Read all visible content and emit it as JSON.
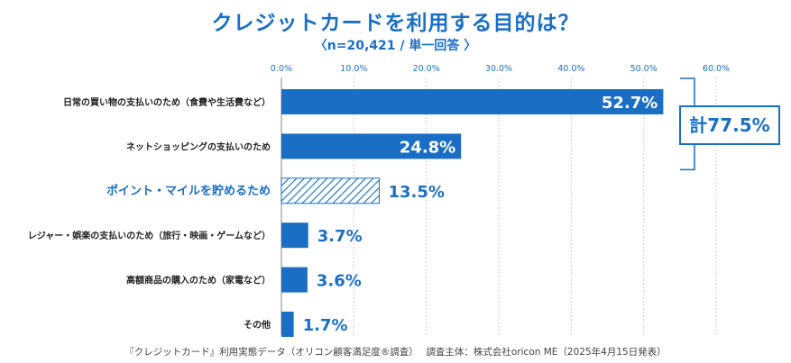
{
  "colors": {
    "accent": "#1a6fc4",
    "bar": "#1a6fc4",
    "grid": "#cfcfcf",
    "label": "#222222"
  },
  "chart_data": {
    "type": "bar",
    "orientation": "horizontal",
    "title": "クレジットカードを利用する目的は？",
    "subtitle": "〈n=20,421 / 単一回答 〉",
    "xlim": [
      0,
      60
    ],
    "ticks": [
      "0.0%",
      "10.0%",
      "20.0%",
      "30.0%",
      "40.0%",
      "50.0%",
      "60.0%"
    ],
    "tick_values": [
      0,
      10,
      20,
      30,
      40,
      50,
      60
    ],
    "categories": [
      "日常の買い物の支払いのため（食費や生活費など）",
      "ネットショッピングの支払いのため",
      "ポイント・マイルを貯めるため",
      "レジャー・娯楽の支払いのため（旅行・映画・ゲームなど）",
      "高額商品の購入のため（家電など）",
      "その他"
    ],
    "values": [
      52.7,
      24.8,
      13.5,
      3.7,
      3.6,
      1.7
    ],
    "value_labels": [
      "52.7%",
      "24.8%",
      "13.5%",
      "3.7%",
      "3.6%",
      "1.7%"
    ],
    "highlighted_category_index": 2,
    "bracket": {
      "label": "計77.5%",
      "total": 77.5,
      "covers": [
        0,
        1
      ]
    }
  },
  "footer": "『クレジットカード』利用実態データ（オリコン顧客満足度®調査）　 調査主体：株式会社oricon ME（2025年4月15日発表）"
}
